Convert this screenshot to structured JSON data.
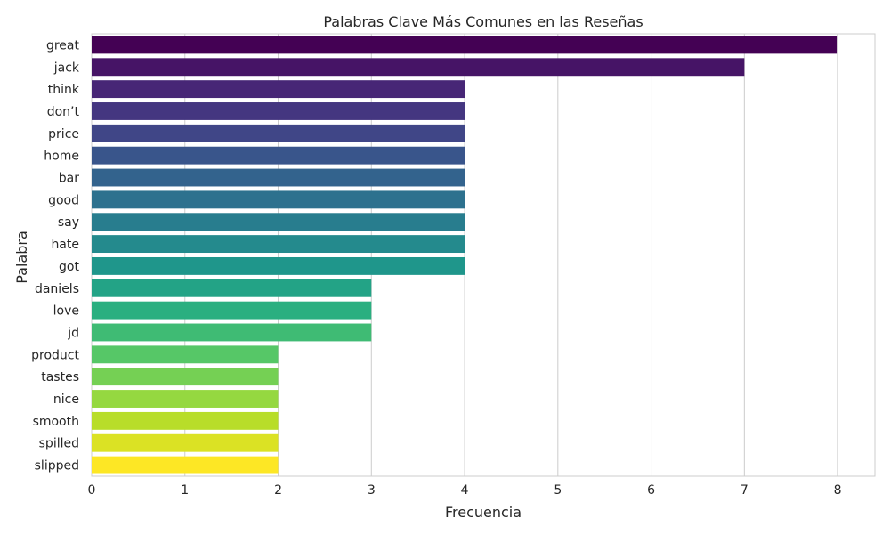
{
  "chart_data": {
    "type": "bar",
    "orientation": "horizontal",
    "title": "Palabras Clave Más Comunes en las Reseñas",
    "xlabel": "Frecuencia",
    "ylabel": "Palabra",
    "categories": [
      "great",
      "jack",
      "think",
      "don’t",
      "price",
      "home",
      "bar",
      "good",
      "say",
      "hate",
      "got",
      "daniels",
      "love",
      "jd",
      "product",
      "tastes",
      "nice",
      "smooth",
      "spilled",
      "slipped"
    ],
    "values": [
      8,
      7,
      4,
      4,
      4,
      4,
      4,
      4,
      4,
      4,
      4,
      3,
      3,
      3,
      2,
      2,
      2,
      2,
      2,
      2
    ],
    "xlim": [
      0,
      8.4
    ],
    "xticks": [
      0,
      1,
      2,
      3,
      4,
      5,
      6,
      7,
      8
    ],
    "grid": true,
    "colormap": "viridis",
    "colors": [
      "#440154",
      "#482173",
      "#433E85",
      "#38588C",
      "#2D708E",
      "#25858E",
      "#1E9B8A",
      "#2BB07F",
      "#51C56A",
      "#85D54A",
      "#C2DF23",
      "#FDE725"
    ]
  }
}
